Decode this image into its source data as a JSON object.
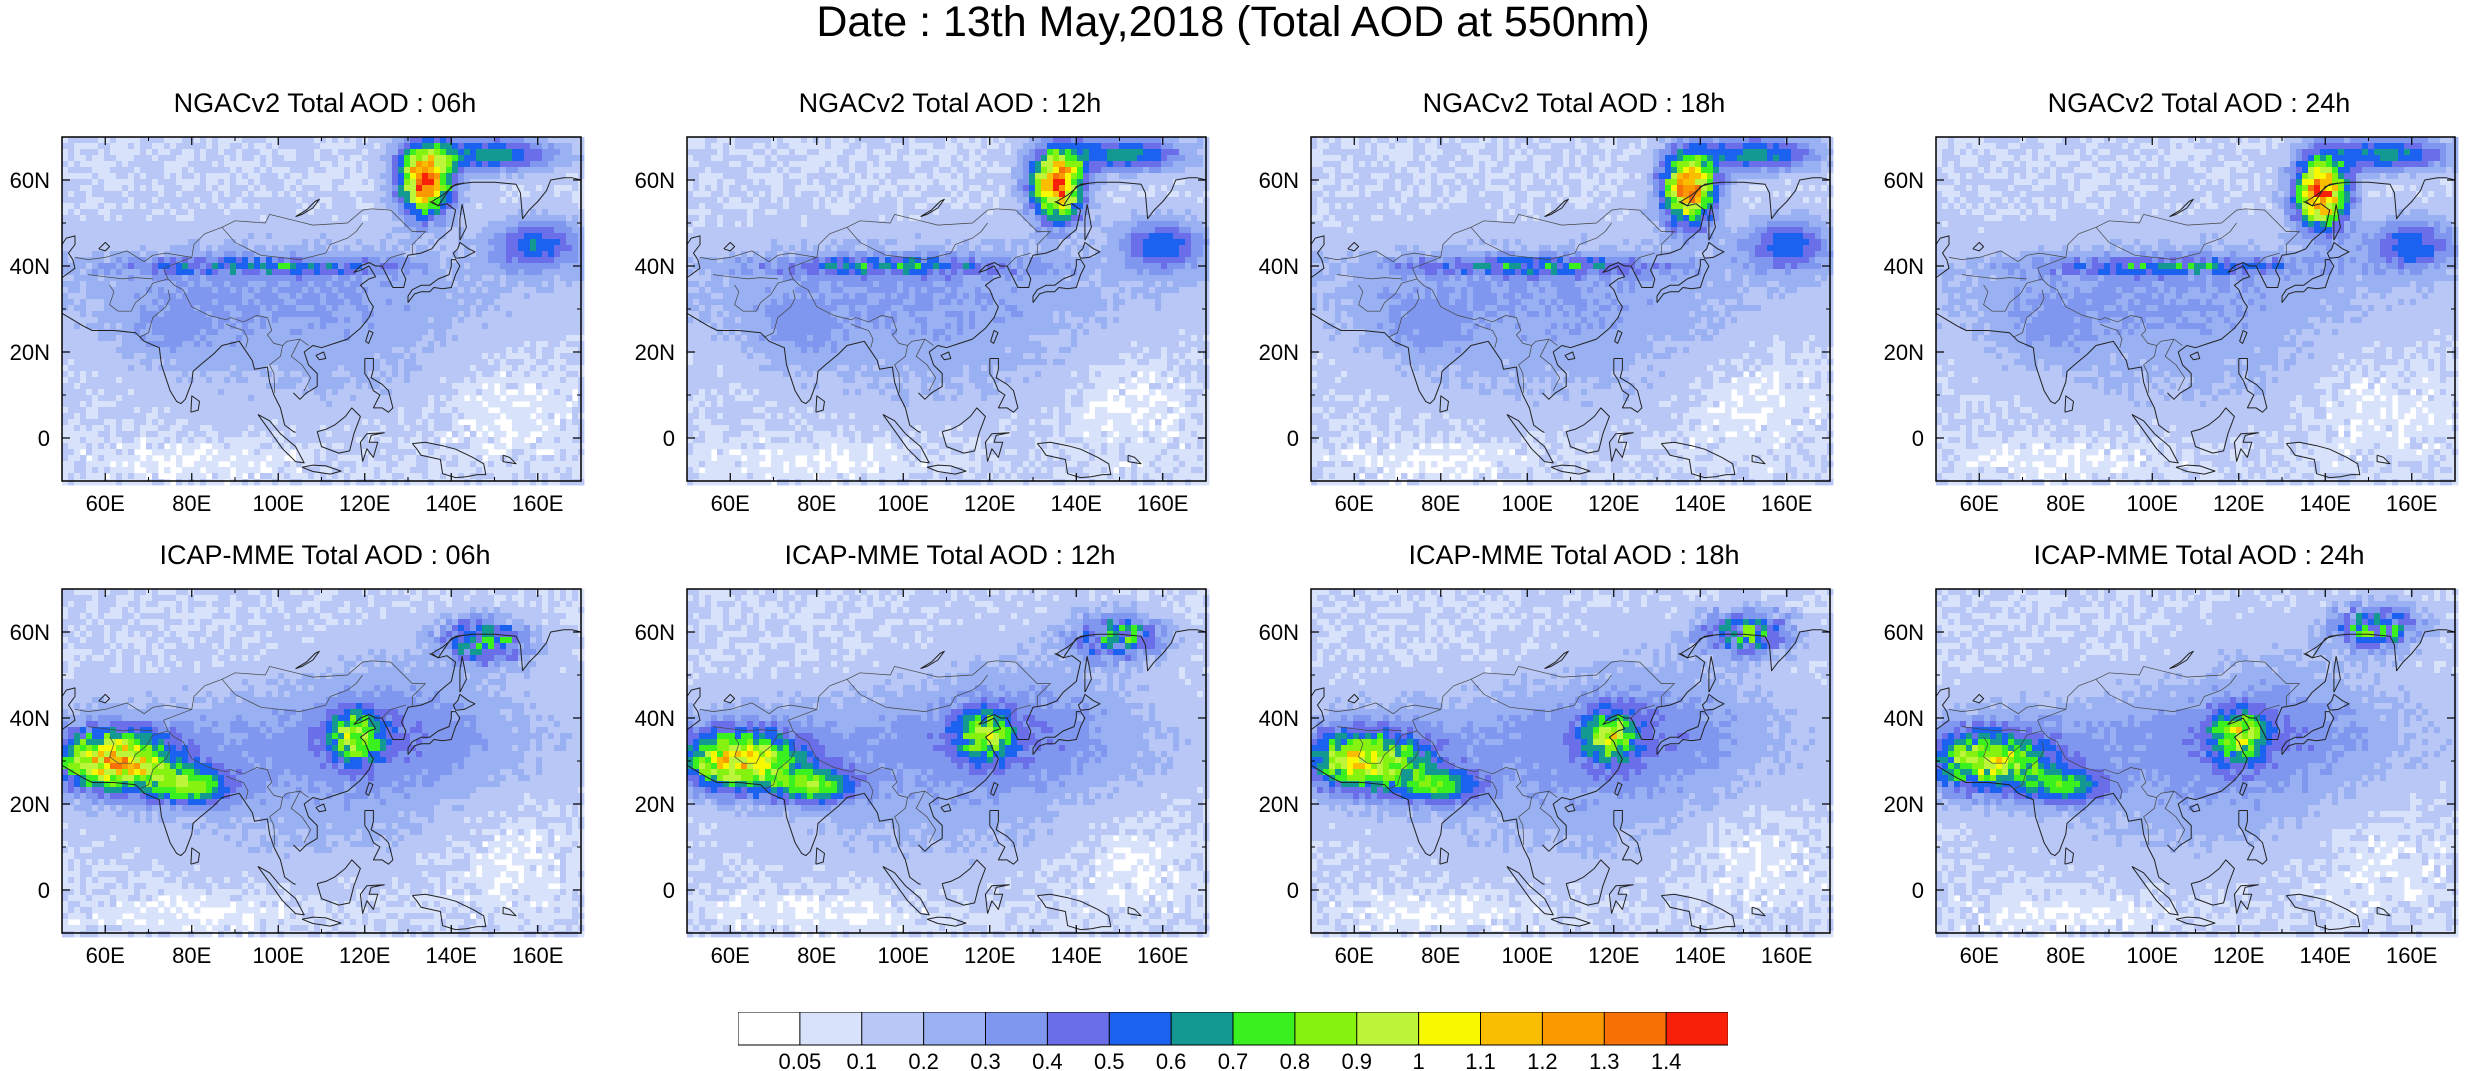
{
  "title": "Date : 13th May,2018 (Total AOD at 550nm)",
  "lon_ticks": [
    "60E",
    "80E",
    "100E",
    "120E",
    "140E",
    "160E"
  ],
  "lat_ticks": [
    "60N",
    "40N",
    "20N",
    "0"
  ],
  "panels": [
    {
      "title": "NGACv2 Total AOD : 06h",
      "model": "ngac",
      "hour": 6
    },
    {
      "title": "NGACv2 Total AOD : 12h",
      "model": "ngac",
      "hour": 12
    },
    {
      "title": "NGACv2 Total AOD : 18h",
      "model": "ngac",
      "hour": 18
    },
    {
      "title": "NGACv2 Total AOD : 24h",
      "model": "ngac",
      "hour": 24
    },
    {
      "title": "ICAP-MME Total AOD : 06h",
      "model": "icap",
      "hour": 6
    },
    {
      "title": "ICAP-MME Total AOD : 12h",
      "model": "icap",
      "hour": 12
    },
    {
      "title": "ICAP-MME Total AOD : 18h",
      "model": "icap",
      "hour": 18
    },
    {
      "title": "ICAP-MME Total AOD : 24h",
      "model": "icap",
      "hour": 24
    }
  ],
  "colorbar": {
    "labels": [
      "0.05",
      "0.1",
      "0.2",
      "0.3",
      "0.4",
      "0.5",
      "0.6",
      "0.7",
      "0.8",
      "0.9",
      "1",
      "1.1",
      "1.2",
      "1.3",
      "1.4"
    ],
    "colors": [
      "#ffffff",
      "#d8e2fa",
      "#b8c7f5",
      "#99b1f2",
      "#7f97ee",
      "#6a6ee8",
      "#1b62f0",
      "#139892",
      "#3af01e",
      "#86f20f",
      "#bdf53a",
      "#f8f800",
      "#fbbd00",
      "#fb9a00",
      "#f87008",
      "#f82008"
    ]
  }
}
